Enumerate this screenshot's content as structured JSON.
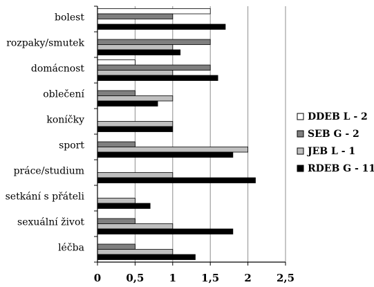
{
  "chart_data": {
    "type": "bar",
    "orientation": "horizontal",
    "title": "",
    "xlabel": "",
    "ylabel": "",
    "xlim": [
      0,
      2.5
    ],
    "x_ticks": [
      "0",
      "0,5",
      "1",
      "1,5",
      "2",
      "2,5"
    ],
    "grid": "vertical",
    "legend_position": "right",
    "categories": [
      "bolest",
      "rozpaky/smutek",
      "domácnost",
      "oblečení",
      "koníčky",
      "sport",
      "práce/studium",
      "setkání s přáteli",
      "sexuální život",
      "léčba"
    ],
    "series": [
      {
        "name": "DDEB L - 2",
        "color": "#ffffff",
        "values": [
          1.5,
          0,
          0.5,
          0,
          0,
          0,
          0,
          0,
          0,
          0
        ]
      },
      {
        "name": "SEB G - 2",
        "color": "#7f7f7f",
        "values": [
          1,
          1.5,
          1.5,
          0.5,
          0,
          0.5,
          0,
          0,
          0.5,
          0.5
        ]
      },
      {
        "name": "JEB L - 1",
        "color": "#bfbfbf",
        "values": [
          0,
          1,
          1,
          1,
          1,
          2,
          1,
          0.5,
          1,
          1
        ]
      },
      {
        "name": "RDEB G - 11",
        "color": "#000000",
        "values": [
          1.7,
          1.1,
          1.6,
          0.8,
          1,
          1.8,
          2.1,
          0.7,
          1.8,
          1.3
        ]
      }
    ]
  }
}
